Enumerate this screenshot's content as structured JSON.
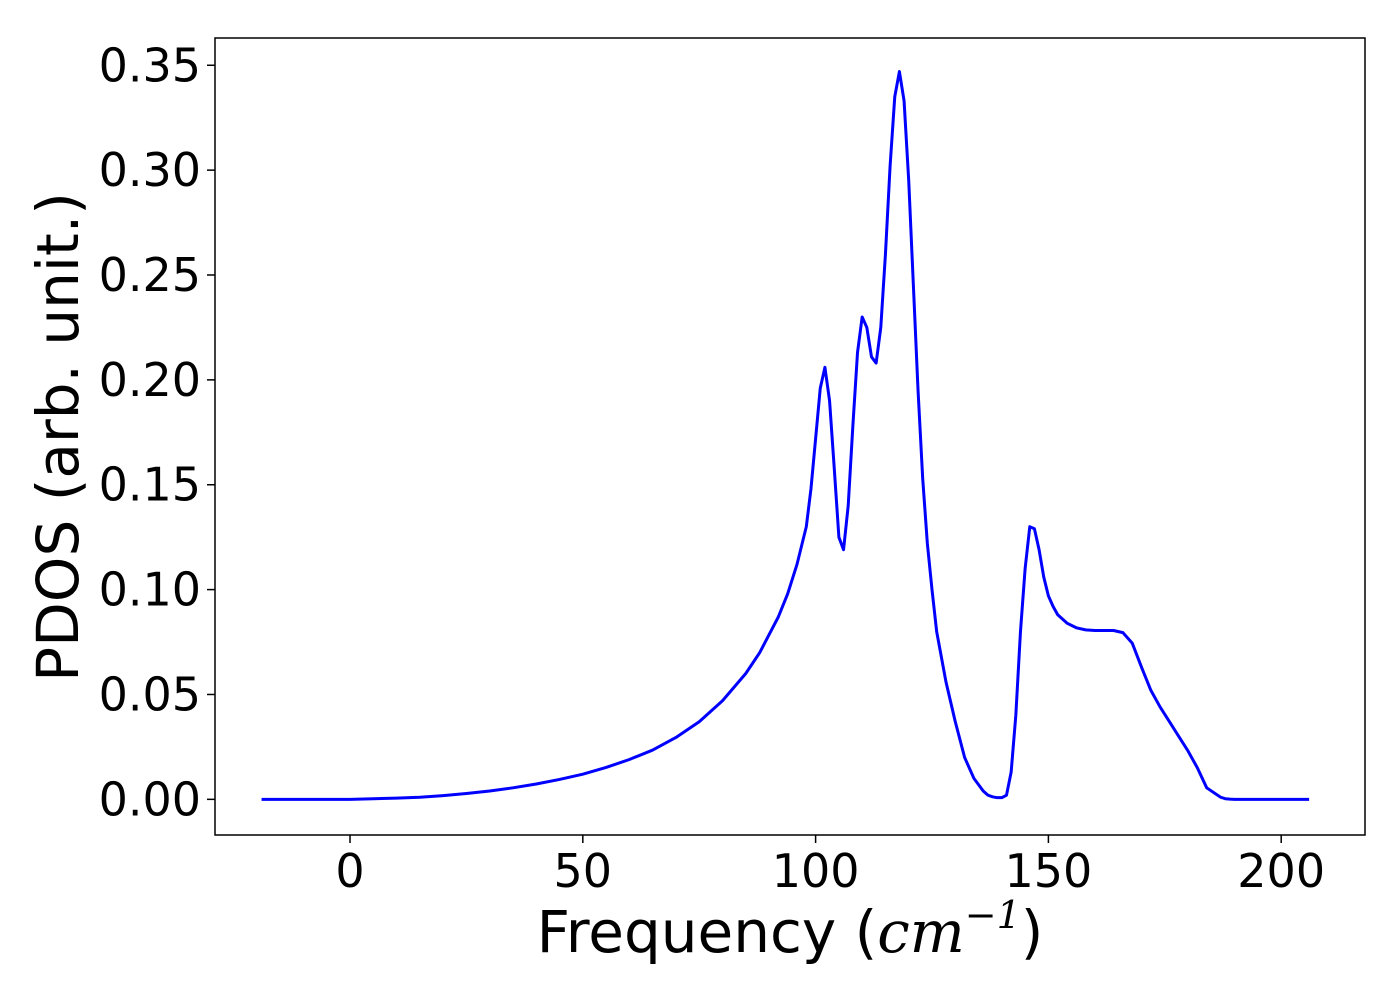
{
  "chart_data": {
    "type": "line",
    "xlabel_main": "Frequency (",
    "xlabel_unit": "cm",
    "xlabel_exp": "−1",
    "xlabel_close": ")",
    "ylabel": "PDOS (arb. unit.)",
    "xlim": [
      -29,
      218
    ],
    "ylim": [
      -0.017,
      0.363
    ],
    "xticks": [
      0,
      50,
      100,
      150,
      200
    ],
    "xtick_labels": [
      "0",
      "50",
      "100",
      "150",
      "200"
    ],
    "yticks": [
      0.0,
      0.05,
      0.1,
      0.15,
      0.2,
      0.25,
      0.3,
      0.35
    ],
    "ytick_labels": [
      "0.00",
      "0.05",
      "0.10",
      "0.15",
      "0.20",
      "0.25",
      "0.30",
      "0.35"
    ],
    "grid": false,
    "series": [
      {
        "color": "#0000ff",
        "x": [
          -19,
          -10,
          0,
          5,
          10,
          15,
          20,
          25,
          30,
          35,
          40,
          45,
          50,
          55,
          60,
          65,
          70,
          75,
          80,
          85,
          88,
          92,
          94,
          96,
          98,
          99,
          100,
          101,
          102,
          103,
          104,
          105,
          106,
          107,
          108,
          109,
          110,
          111,
          112,
          113,
          114,
          115,
          116,
          117,
          118,
          119,
          120,
          121,
          122,
          123,
          124,
          125,
          126,
          128,
          130,
          132,
          134,
          136,
          137,
          138,
          139,
          140,
          141,
          142,
          143,
          144,
          145,
          146,
          147,
          148,
          149,
          150,
          151,
          152,
          154,
          156,
          158,
          160,
          162,
          164,
          166,
          168,
          170,
          172,
          174,
          176,
          178,
          180,
          182,
          184,
          186,
          187,
          188,
          189,
          190,
          192,
          195,
          200,
          206
        ],
        "y": [
          0.0,
          0.0,
          0.0,
          0.0003,
          0.0006,
          0.001,
          0.0018,
          0.0028,
          0.004,
          0.0055,
          0.0073,
          0.0095,
          0.012,
          0.0152,
          0.019,
          0.0235,
          0.0295,
          0.037,
          0.047,
          0.06,
          0.07,
          0.087,
          0.098,
          0.112,
          0.13,
          0.148,
          0.172,
          0.196,
          0.206,
          0.19,
          0.158,
          0.125,
          0.119,
          0.14,
          0.178,
          0.213,
          0.23,
          0.225,
          0.211,
          0.208,
          0.225,
          0.26,
          0.302,
          0.335,
          0.347,
          0.333,
          0.295,
          0.245,
          0.195,
          0.153,
          0.122,
          0.1,
          0.08,
          0.056,
          0.037,
          0.02,
          0.01,
          0.004,
          0.002,
          0.0012,
          0.0008,
          0.0008,
          0.002,
          0.013,
          0.04,
          0.08,
          0.11,
          0.13,
          0.129,
          0.119,
          0.106,
          0.097,
          0.092,
          0.088,
          0.084,
          0.0818,
          0.0808,
          0.0805,
          0.0805,
          0.0805,
          0.0795,
          0.0745,
          0.063,
          0.052,
          0.044,
          0.037,
          0.03,
          0.023,
          0.015,
          0.0055,
          0.0025,
          0.001,
          0.0003,
          0.0001,
          0.0,
          0.0,
          0.0,
          0.0,
          0.0
        ]
      }
    ]
  }
}
